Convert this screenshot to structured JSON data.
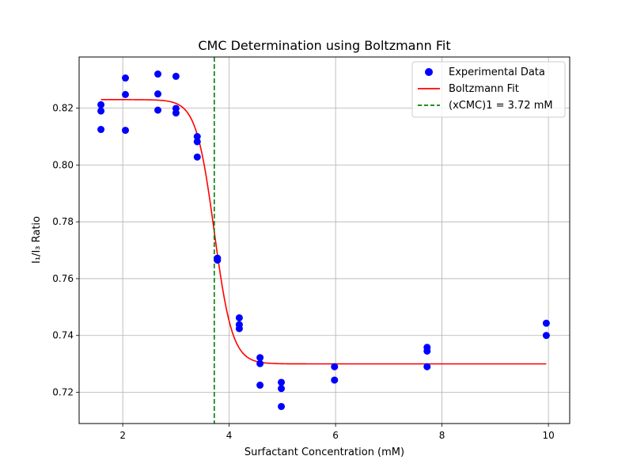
{
  "chart_data": {
    "type": "scatter",
    "title": "CMC Determination using Boltzmann Fit",
    "xlabel": "Surfactant Concentration (mM)",
    "ylabel": "I₁/I₃ Ratio",
    "xlim": [
      1.18,
      10.4
    ],
    "ylim": [
      0.709,
      0.838
    ],
    "xticks": [
      2,
      4,
      6,
      8,
      10
    ],
    "yticks": [
      0.72,
      0.74,
      0.76,
      0.78,
      0.8,
      0.82
    ],
    "grid": true,
    "legend_position": "top-right",
    "series": [
      {
        "name": "Experimental Data",
        "kind": "scatter",
        "color": "#0000ff",
        "points": [
          [
            1.59,
            0.8212
          ],
          [
            1.59,
            0.819
          ],
          [
            1.59,
            0.8125
          ],
          [
            2.05,
            0.8306
          ],
          [
            2.05,
            0.8248
          ],
          [
            2.05,
            0.8122
          ],
          [
            2.66,
            0.832
          ],
          [
            2.66,
            0.825
          ],
          [
            2.66,
            0.8193
          ],
          [
            3.0,
            0.8312
          ],
          [
            3.0,
            0.8199
          ],
          [
            3.0,
            0.8183
          ],
          [
            3.4,
            0.81
          ],
          [
            3.4,
            0.8082
          ],
          [
            3.4,
            0.8028
          ],
          [
            3.78,
            0.7672
          ],
          [
            3.78,
            0.7665
          ],
          [
            4.19,
            0.7462
          ],
          [
            4.19,
            0.7438
          ],
          [
            4.19,
            0.7424
          ],
          [
            4.58,
            0.7322
          ],
          [
            4.58,
            0.7301
          ],
          [
            4.58,
            0.7225
          ],
          [
            4.98,
            0.7235
          ],
          [
            4.98,
            0.7213
          ],
          [
            4.98,
            0.715
          ],
          [
            5.98,
            0.729
          ],
          [
            5.98,
            0.7243
          ],
          [
            7.72,
            0.7358
          ],
          [
            7.72,
            0.7345
          ],
          [
            7.72,
            0.729
          ],
          [
            9.96,
            0.7443
          ],
          [
            9.96,
            0.74
          ]
        ]
      },
      {
        "name": "Boltzmann Fit",
        "kind": "line",
        "color": "#ff0000",
        "function": "boltzmann",
        "params": {
          "A1": 0.823,
          "A2": 0.73,
          "x0": 3.72,
          "dx": 0.17
        },
        "x_range": [
          1.59,
          9.96
        ]
      },
      {
        "name": "(xCMC)1 = 3.72 mM",
        "kind": "vline",
        "color": "#008000",
        "x": 3.72
      }
    ]
  }
}
